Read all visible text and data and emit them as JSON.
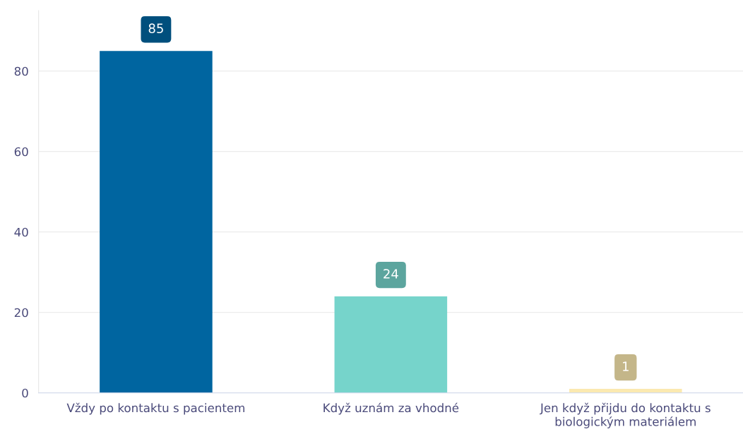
{
  "chart_data": {
    "type": "bar",
    "categories": [
      "Vždy po kontaktu s pacientem",
      "Když uznám za vhodné",
      "Jen když přijdu do kontaktu s\nbiologickým materiálem"
    ],
    "values": [
      85,
      24,
      1
    ],
    "colors": [
      "#0065a0",
      "#76d4cb",
      "#fbe9b0"
    ],
    "ylim": [
      0,
      95
    ],
    "yticks": [
      0,
      20,
      40,
      60,
      80
    ],
    "grid": "y",
    "data_labels": true
  }
}
